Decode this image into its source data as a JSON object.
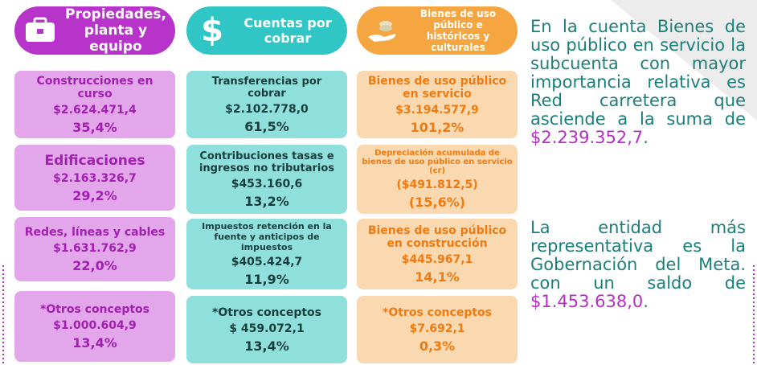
{
  "columns": [
    {
      "title": "Propiedades, planta y equipo",
      "cards": [
        {
          "label": "Construcciones en curso",
          "amount": "$2.624.471,4",
          "percent": "35,4%"
        },
        {
          "label": "Edificaciones",
          "amount": "$2.163.326,7",
          "percent": "29,2%"
        },
        {
          "label": "Redes, líneas y cables",
          "amount": "$1.631.762,9",
          "percent": "22,0%"
        },
        {
          "label": "*Otros conceptos",
          "amount": "$1.000.604,9",
          "percent": "13,4%"
        }
      ]
    },
    {
      "title": "Cuentas por cobrar",
      "icon": "$",
      "cards": [
        {
          "label": "Transferencias por cobrar",
          "amount": "$2.102.778,0",
          "percent": "61,5%"
        },
        {
          "label": "Contribuciones tasas e ingresos no tributarios",
          "amount": "$453.160,6",
          "percent": "13,2%"
        },
        {
          "label": "Impuestos retención en la fuente y anticipos de impuestos",
          "amount": "$405.424,7",
          "percent": "11,9%"
        },
        {
          "label": "*Otros conceptos",
          "amount": "$ 459.072,1",
          "percent": "13,4%"
        }
      ]
    },
    {
      "title": "Bienes de uso público e históricos y culturales",
      "cards": [
        {
          "label": "Bienes de uso público en servicio",
          "amount": "$3.194.577,9",
          "percent": "101,2%"
        },
        {
          "label": "Depreciación acumulada de bienes de uso público en servicio (cr)",
          "amount": "($491.812,5)",
          "percent": "(15,6%)"
        },
        {
          "label": "Bienes de uso público en construcción",
          "amount": "$445.967,1",
          "percent": "14,1%"
        },
        {
          "label": "*Otros conceptos",
          "amount": "$7.692,1",
          "percent": "0,3%"
        }
      ]
    }
  ],
  "paragraphs": [
    {
      "text": "En la cuenta Bienes de uso público en servicio la subcuenta con mayor importancia relativa es Red carretera que asciende a la suma de ",
      "highlight": "$2.239.352,7",
      "end": "."
    },
    {
      "text": "La entidad más representativa es la Gobernación del Meta. con un saldo de ",
      "highlight": "$1.453.638,0",
      "end": "."
    }
  ]
}
